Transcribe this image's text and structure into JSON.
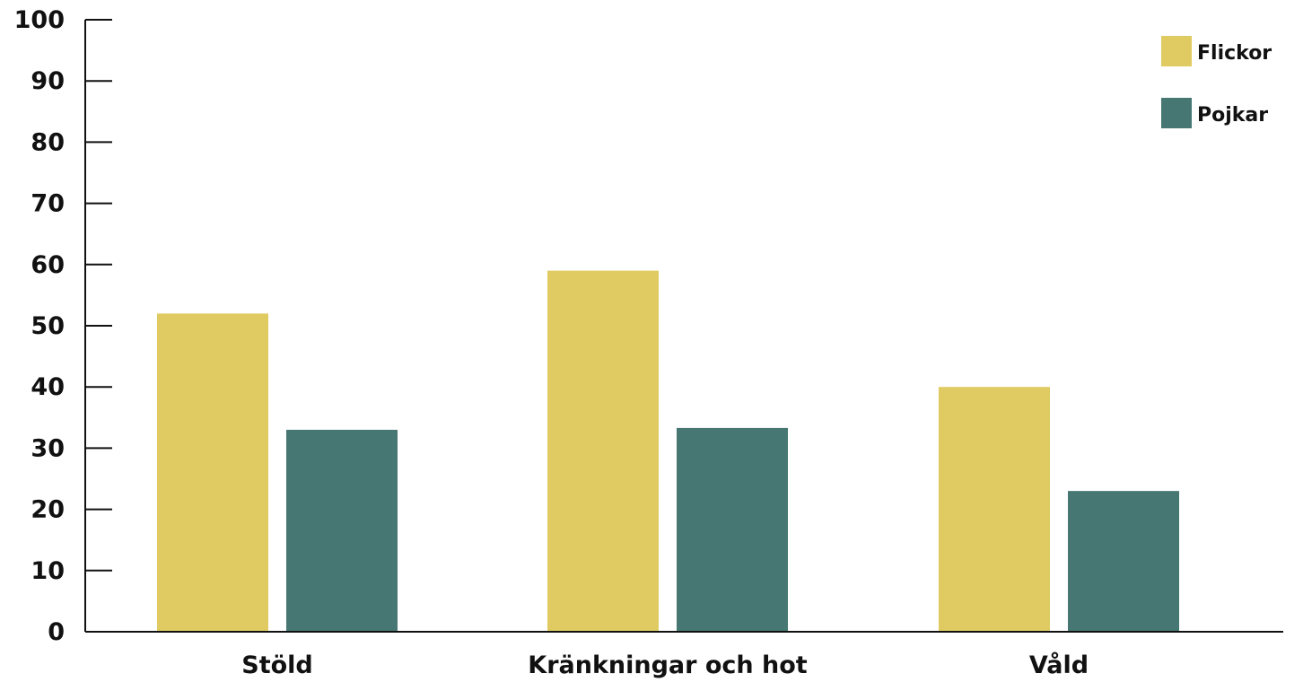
{
  "chart_data": {
    "type": "bar",
    "title": "",
    "xlabel": "",
    "ylabel": "",
    "categories": [
      "Stöld",
      "Kränkningar och hot",
      "Våld"
    ],
    "series": [
      {
        "name": "Flickor",
        "values": [
          52,
          59,
          40
        ],
        "color": "#e0cb62"
      },
      {
        "name": "Pojkar",
        "values": [
          33,
          33.3,
          23
        ],
        "color": "#467772"
      }
    ],
    "ylim": [
      0,
      100
    ],
    "yticks": [
      0,
      10,
      20,
      30,
      40,
      50,
      60,
      70,
      80,
      90,
      100
    ],
    "grid": false,
    "legend_position": "top-right"
  },
  "colors": {
    "axis": "#111111",
    "text": "#111111"
  }
}
